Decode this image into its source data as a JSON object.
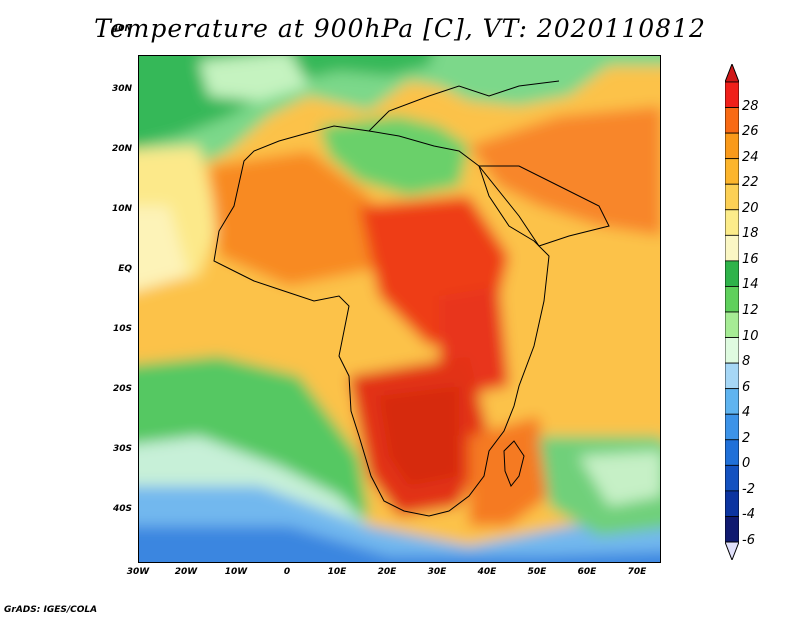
{
  "title": "Temperature at 900hPa [C], VT: 2020110812",
  "credit": "GrADS: IGES/COLA",
  "axes": {
    "lat_labels": [
      "40N",
      "30N",
      "20N",
      "10N",
      "EQ",
      "10S",
      "20S",
      "30S",
      "40S"
    ],
    "lon_labels": [
      "30W",
      "20W",
      "10W",
      "0",
      "10E",
      "20E",
      "30E",
      "40E",
      "50E",
      "60E",
      "70E"
    ]
  },
  "colorbar": {
    "labels": [
      "28",
      "26",
      "24",
      "22",
      "20",
      "18",
      "16",
      "14",
      "12",
      "10",
      "8",
      "6",
      "4",
      "2",
      "0",
      "-2",
      "-4",
      "-6"
    ],
    "colors": [
      "#f0201a",
      "#f86a14",
      "#fa9a1a",
      "#fcb52c",
      "#fcd055",
      "#fcec8a",
      "#fbf7c4",
      "#2fb34a",
      "#5fd05c",
      "#a6ec95",
      "#dffbe0",
      "#a6d7f6",
      "#5fb4f0",
      "#3c93e8",
      "#2070d8",
      "#1452c0",
      "#0c34a0",
      "#101a70"
    ]
  }
}
